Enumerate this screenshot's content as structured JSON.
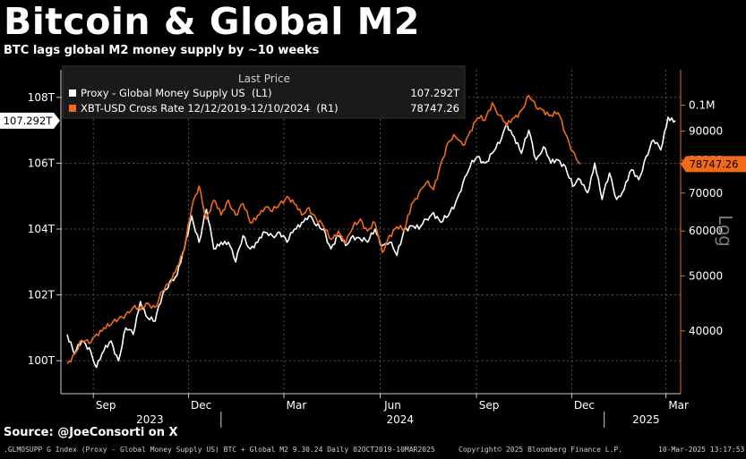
{
  "header": {
    "title": "Bitcoin & Global M2",
    "subtitle": "BTC lags global M2 money supply by ~10 weeks"
  },
  "footer": {
    "source": "Source: @JoeConsorti on X",
    "left": ".GLMOSUPP G Index (Proxy - Global Money Supply US) BTC + Global M2 9.30.24  Daily 02OCT2019-10MAR2025",
    "mid": "Copyright© 2025 Bloomberg Finance L.P.",
    "right": "10-Mar-2025 13:17:53"
  },
  "colors": {
    "background": "#000000",
    "m2": "#ffffff",
    "btc": "#f06a1a",
    "grid": "#555555",
    "right_axis": "#f06a1a"
  },
  "chart_data": {
    "type": "line",
    "legend": {
      "header": "Last Price",
      "placement": "top-left",
      "entries": [
        {
          "name": "Proxy - Global Money Supply US  (L1)",
          "value": "107.292T"
        },
        {
          "name": "XBT-USD Cross Rate 12/12/2019-12/10/2024  (R1)",
          "value": "78747.26"
        }
      ]
    },
    "x_ticks": [
      "Sep",
      "Dec",
      "Mar",
      "Jun",
      "Sep",
      "Dec",
      "Mar"
    ],
    "x_year_labels": [
      "2023",
      "2024",
      "2025"
    ],
    "left_axis": {
      "ticks": [
        "108T",
        "106T",
        "104T",
        "102T",
        "100T"
      ],
      "tick_values": [
        108,
        106,
        104,
        102,
        100
      ],
      "range": [
        99.0,
        109.0
      ],
      "last_value_label": "107.292T"
    },
    "right_axis": {
      "ticks": [
        "0.1M",
        "90000",
        "80000",
        "70000",
        "60000",
        "50000",
        "40000"
      ],
      "tick_values": [
        100000,
        90000,
        80000,
        70000,
        60000,
        50000,
        40000
      ],
      "range": [
        31000,
        118000
      ],
      "scale": "log",
      "scale_label": "Log",
      "last_value_label": "78747.26"
    },
    "grid": true,
    "series": [
      {
        "name": "Proxy - Global Money Supply US  (L1)",
        "axis": "left",
        "x": [
          "2023-08-07",
          "2023-08-14",
          "2023-08-21",
          "2023-08-28",
          "2023-09-04",
          "2023-09-11",
          "2023-09-18",
          "2023-09-25",
          "2023-10-02",
          "2023-10-09",
          "2023-10-16",
          "2023-10-23",
          "2023-10-30",
          "2023-11-06",
          "2023-11-13",
          "2023-11-20",
          "2023-11-27",
          "2023-12-04",
          "2023-12-11",
          "2023-12-18",
          "2023-12-25",
          "2024-01-01",
          "2024-01-08",
          "2024-01-15",
          "2024-01-22",
          "2024-01-29",
          "2024-02-05",
          "2024-02-12",
          "2024-02-19",
          "2024-02-26",
          "2024-03-04",
          "2024-03-11",
          "2024-03-18",
          "2024-03-25",
          "2024-04-01",
          "2024-04-08",
          "2024-04-15",
          "2024-04-22",
          "2024-04-29",
          "2024-05-06",
          "2024-05-13",
          "2024-05-20",
          "2024-05-27",
          "2024-06-03",
          "2024-06-10",
          "2024-06-17",
          "2024-06-24",
          "2024-07-01",
          "2024-07-08",
          "2024-07-15",
          "2024-07-22",
          "2024-07-29",
          "2024-08-05",
          "2024-08-12",
          "2024-08-19",
          "2024-08-26",
          "2024-09-02",
          "2024-09-09",
          "2024-09-16",
          "2024-09-23",
          "2024-09-30",
          "2024-10-07",
          "2024-10-14",
          "2024-10-21",
          "2024-10-28",
          "2024-11-04",
          "2024-11-11",
          "2024-11-18",
          "2024-11-25",
          "2024-12-02",
          "2024-12-09",
          "2024-12-16",
          "2024-12-23",
          "2024-12-30",
          "2025-01-06",
          "2025-01-13",
          "2025-01-20",
          "2025-01-27",
          "2025-02-03",
          "2025-02-10",
          "2025-02-17",
          "2025-02-24",
          "2025-03-03",
          "2025-03-10"
        ],
        "values": [
          100.8,
          100.2,
          100.6,
          100.4,
          99.8,
          100.3,
          100.6,
          100.0,
          101.0,
          100.8,
          101.8,
          101.3,
          101.2,
          102.0,
          102.4,
          102.6,
          103.4,
          104.4,
          103.6,
          104.6,
          103.4,
          103.6,
          103.6,
          103.0,
          103.8,
          103.4,
          103.6,
          103.9,
          103.8,
          103.9,
          103.6,
          104.0,
          104.2,
          104.4,
          104.1,
          104.0,
          103.4,
          103.8,
          103.5,
          103.8,
          103.7,
          103.6,
          104.0,
          103.5,
          103.6,
          103.2,
          104.0,
          104.1,
          104.0,
          104.3,
          104.5,
          104.2,
          104.4,
          104.8,
          105.4,
          105.9,
          106.2,
          106.0,
          106.3,
          106.6,
          107.2,
          106.8,
          106.3,
          107.0,
          106.1,
          106.5,
          106.0,
          106.1,
          105.9,
          105.3,
          105.5,
          105.1,
          106.0,
          104.9,
          105.7,
          104.9,
          105.2,
          105.8,
          105.5,
          106.2,
          106.7,
          106.4,
          107.4,
          107.292
        ]
      },
      {
        "name": "XBT-USD Cross Rate 12/12/2019-12/10/2024  (R1)",
        "axis": "right",
        "x": [
          "2023-08-07",
          "2023-08-14",
          "2023-08-21",
          "2023-08-28",
          "2023-09-04",
          "2023-09-11",
          "2023-09-18",
          "2023-09-25",
          "2023-10-02",
          "2023-10-09",
          "2023-10-16",
          "2023-10-23",
          "2023-10-30",
          "2023-11-06",
          "2023-11-13",
          "2023-11-20",
          "2023-11-27",
          "2023-12-04",
          "2023-12-11",
          "2023-12-18",
          "2023-12-25",
          "2024-01-01",
          "2024-01-08",
          "2024-01-15",
          "2024-01-22",
          "2024-01-29",
          "2024-02-05",
          "2024-02-12",
          "2024-02-19",
          "2024-02-26",
          "2024-03-04",
          "2024-03-11",
          "2024-03-18",
          "2024-03-25",
          "2024-04-01",
          "2024-04-08",
          "2024-04-15",
          "2024-04-22",
          "2024-04-29",
          "2024-05-06",
          "2024-05-13",
          "2024-05-20",
          "2024-05-27",
          "2024-06-03",
          "2024-06-10",
          "2024-06-17",
          "2024-06-24",
          "2024-07-01",
          "2024-07-08",
          "2024-07-15",
          "2024-07-22",
          "2024-07-29",
          "2024-08-05",
          "2024-08-12",
          "2024-08-19",
          "2024-08-26",
          "2024-09-02",
          "2024-09-09",
          "2024-09-16",
          "2024-09-23",
          "2024-09-30",
          "2024-10-07",
          "2024-10-14",
          "2024-10-21",
          "2024-10-28",
          "2024-11-04",
          "2024-11-11",
          "2024-11-18",
          "2024-11-25",
          "2024-12-02",
          "2024-12-09"
        ],
        "values": [
          35000,
          36500,
          38500,
          38000,
          39500,
          40500,
          41000,
          42000,
          42800,
          44000,
          43500,
          44800,
          44000,
          47000,
          48500,
          52000,
          56000,
          66000,
          72000,
          63000,
          68000,
          64000,
          68000,
          64000,
          67000,
          62000,
          64000,
          66000,
          65000,
          67000,
          69000,
          67000,
          64000,
          66000,
          63000,
          61000,
          58000,
          60000,
          57000,
          61000,
          63000,
          60000,
          62000,
          55000,
          59000,
          61000,
          60000,
          67000,
          70000,
          73000,
          71000,
          79000,
          86000,
          88000,
          85000,
          90000,
          95000,
          94000,
          101000,
          96000,
          92000,
          95000,
          98000,
          104000,
          99000,
          98000,
          96000,
          97000,
          89000,
          83000,
          78747.26
        ]
      }
    ]
  }
}
